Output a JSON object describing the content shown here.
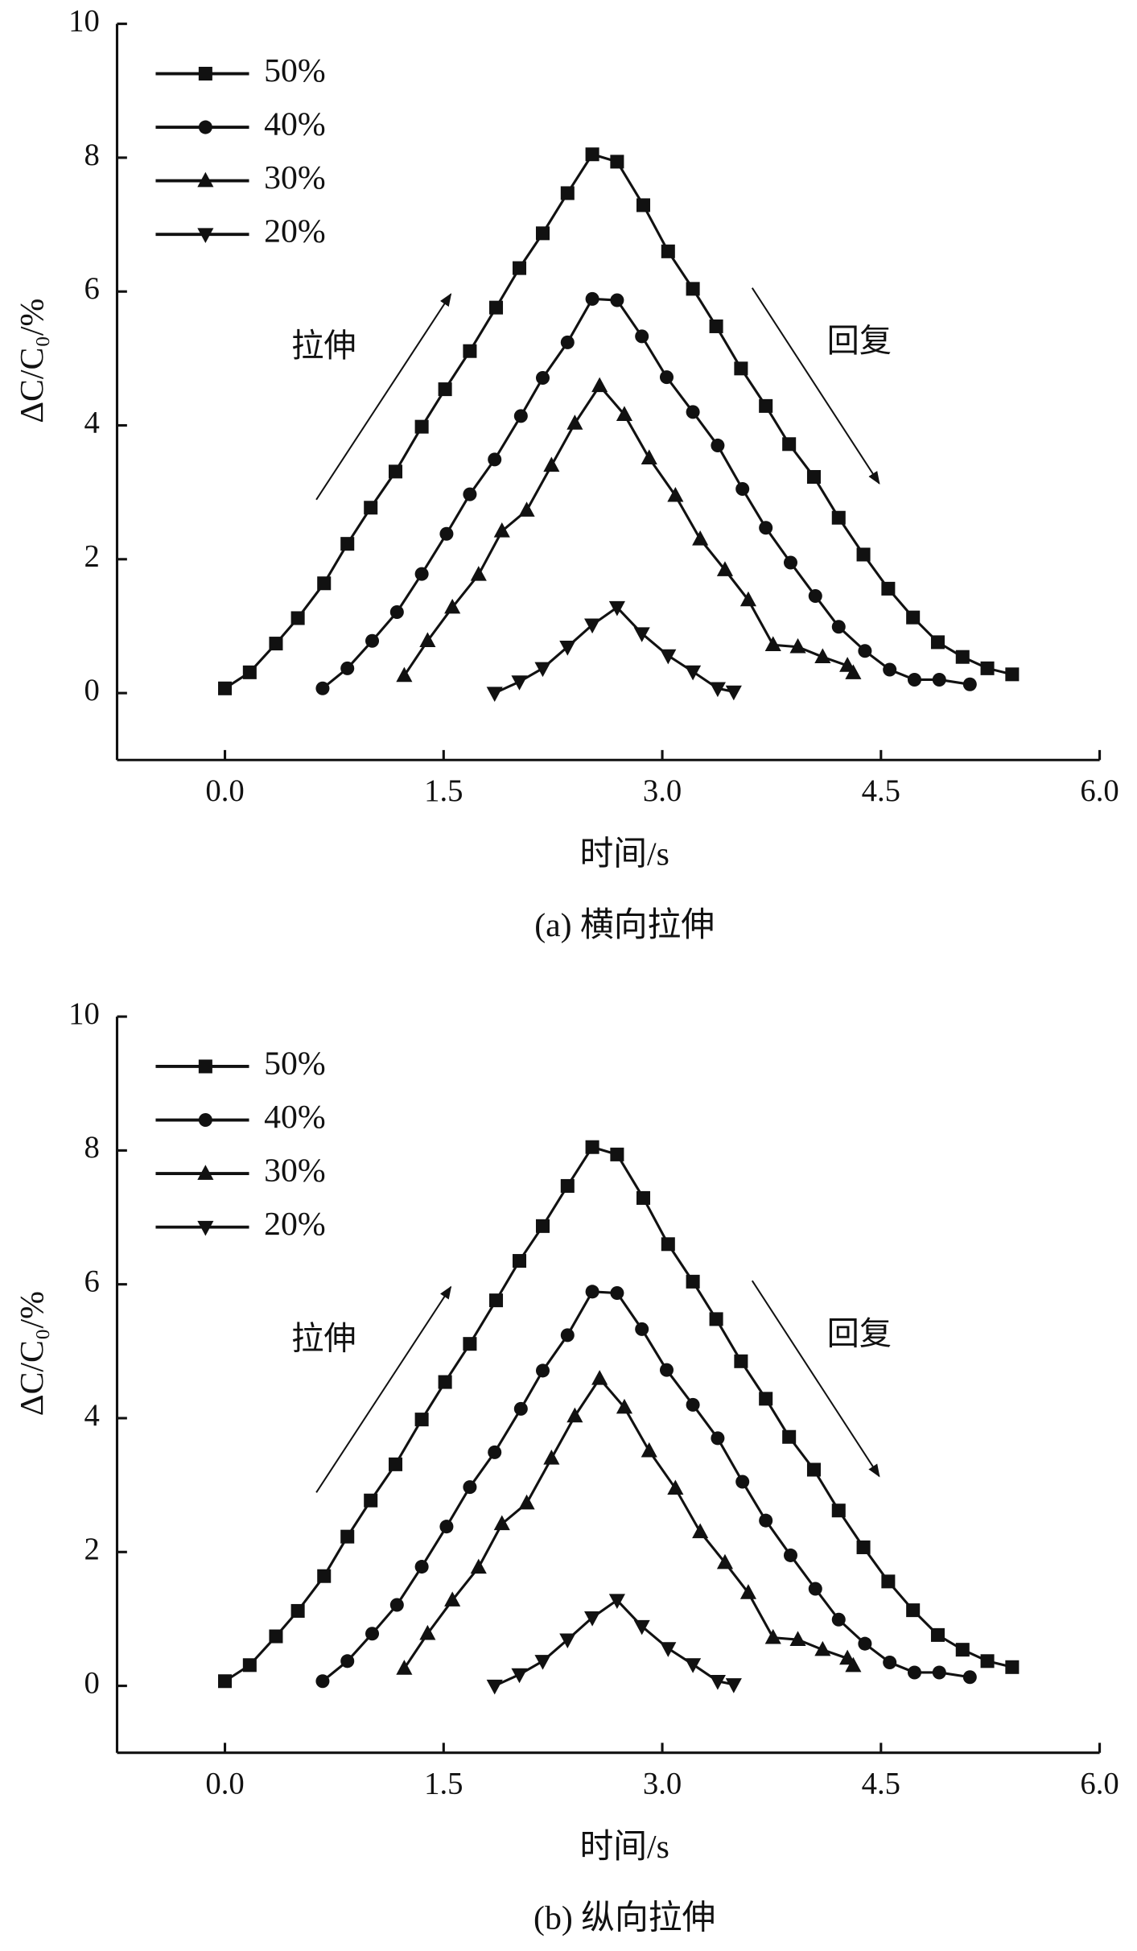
{
  "chart_data": [
    {
      "type": "line",
      "caption": "(a) 横向拉伸",
      "x_label": "时间/s",
      "y_label": "ΔC/C₀/%",
      "annotations": [
        "拉伸",
        "回复"
      ],
      "xlim": [
        -0.74,
        6
      ],
      "ylim": [
        -1,
        10
      ],
      "xticks": [
        {
          "value": 0,
          "label": "0.0"
        },
        {
          "value": 1.5,
          "label": "1.5"
        },
        {
          "value": 3,
          "label": "3.0"
        },
        {
          "value": 4.5,
          "label": "4.5"
        },
        {
          "value": 6,
          "label": "6.0"
        }
      ],
      "yticks": [
        0,
        2,
        4,
        6,
        8,
        10
      ],
      "legend": "upper-left",
      "series": [
        {
          "name": "50%",
          "color": "#111111",
          "marker": "square",
          "x": [
            0,
            0.17,
            0.35,
            0.5,
            0.68,
            0.84,
            1.0,
            1.17,
            1.35,
            1.51,
            1.68,
            1.86,
            2.02,
            2.18,
            2.35,
            2.52,
            2.69,
            2.87,
            3.04,
            3.21,
            3.37,
            3.54,
            3.71,
            3.87,
            4.04,
            4.21,
            4.38,
            4.55,
            4.72,
            4.89,
            5.06,
            5.23,
            5.4
          ],
          "values": [
            0.07,
            0.31,
            0.74,
            1.12,
            1.64,
            2.23,
            2.77,
            3.31,
            3.98,
            4.54,
            5.11,
            5.76,
            6.35,
            6.87,
            7.47,
            8.05,
            7.94,
            7.29,
            6.6,
            6.04,
            5.48,
            4.85,
            4.29,
            3.72,
            3.23,
            2.62,
            2.07,
            1.56,
            1.13,
            0.76,
            0.54,
            0.37,
            0.28
          ]
        },
        {
          "name": "40%",
          "color": "#111111",
          "marker": "circle",
          "x": [
            0.67,
            0.84,
            1.01,
            1.18,
            1.35,
            1.52,
            1.68,
            1.85,
            2.03,
            2.18,
            2.35,
            2.52,
            2.69,
            2.86,
            3.03,
            3.21,
            3.38,
            3.55,
            3.71,
            3.88,
            4.05,
            4.21,
            4.39,
            4.56,
            4.73,
            4.9,
            5.11
          ],
          "values": [
            0.07,
            0.37,
            0.78,
            1.21,
            1.78,
            2.38,
            2.97,
            3.49,
            4.14,
            4.71,
            5.24,
            5.89,
            5.87,
            5.33,
            4.72,
            4.2,
            3.7,
            3.05,
            2.47,
            1.95,
            1.45,
            0.99,
            0.63,
            0.35,
            0.2,
            0.2,
            0.13
          ]
        },
        {
          "name": "30%",
          "color": "#111111",
          "marker": "triangle-up",
          "x": [
            1.23,
            1.39,
            1.56,
            1.74,
            1.9,
            2.07,
            2.24,
            2.4,
            2.57,
            2.74,
            2.91,
            3.09,
            3.26,
            3.43,
            3.59,
            3.76,
            3.93,
            4.1,
            4.27,
            4.31
          ],
          "values": [
            0.26,
            0.78,
            1.28,
            1.77,
            2.42,
            2.73,
            3.4,
            4.03,
            4.59,
            4.16,
            3.51,
            2.95,
            2.3,
            1.84,
            1.39,
            0.72,
            0.69,
            0.54,
            0.41,
            0.3
          ]
        },
        {
          "name": "20%",
          "color": "#111111",
          "marker": "triangle-down",
          "x": [
            1.85,
            2.02,
            2.18,
            2.35,
            2.52,
            2.69,
            2.86,
            3.04,
            3.21,
            3.38,
            3.49
          ],
          "values": [
            0,
            0.17,
            0.37,
            0.69,
            1.02,
            1.28,
            0.89,
            0.56,
            0.32,
            0.07,
            0.02
          ]
        }
      ]
    },
    {
      "type": "line",
      "caption": "(b) 纵向拉伸",
      "x_label": "时间/s",
      "y_label": "ΔC/C₀/%",
      "annotations": [
        "拉伸",
        "回复"
      ],
      "xlim": [
        -0.74,
        6
      ],
      "ylim": [
        -1,
        10
      ],
      "xticks": [
        {
          "value": 0,
          "label": "0.0"
        },
        {
          "value": 1.5,
          "label": "1.5"
        },
        {
          "value": 3,
          "label": "3.0"
        },
        {
          "value": 4.5,
          "label": "4.5"
        },
        {
          "value": 6,
          "label": "6.0"
        }
      ],
      "yticks": [
        0,
        2,
        4,
        6,
        8,
        10
      ],
      "legend": "upper-left",
      "series": [
        {
          "name": "50%",
          "color": "#111111",
          "marker": "square",
          "x": [
            0,
            0.17,
            0.35,
            0.5,
            0.68,
            0.84,
            1.0,
            1.17,
            1.35,
            1.51,
            1.68,
            1.86,
            2.02,
            2.18,
            2.35,
            2.52,
            2.69,
            2.87,
            3.04,
            3.21,
            3.37,
            3.54,
            3.71,
            3.87,
            4.04,
            4.21,
            4.38,
            4.55,
            4.72,
            4.89,
            5.06,
            5.23,
            5.4
          ],
          "values": [
            0.07,
            0.31,
            0.74,
            1.12,
            1.64,
            2.23,
            2.77,
            3.31,
            3.98,
            4.54,
            5.11,
            5.76,
            6.35,
            6.87,
            7.47,
            8.05,
            7.94,
            7.29,
            6.6,
            6.04,
            5.48,
            4.85,
            4.29,
            3.72,
            3.23,
            2.62,
            2.07,
            1.56,
            1.13,
            0.76,
            0.54,
            0.37,
            0.28
          ]
        },
        {
          "name": "40%",
          "color": "#111111",
          "marker": "circle",
          "x": [
            0.67,
            0.84,
            1.01,
            1.18,
            1.35,
            1.52,
            1.68,
            1.85,
            2.03,
            2.18,
            2.35,
            2.52,
            2.69,
            2.86,
            3.03,
            3.21,
            3.38,
            3.55,
            3.71,
            3.88,
            4.05,
            4.21,
            4.39,
            4.56,
            4.73,
            4.9,
            5.11
          ],
          "values": [
            0.07,
            0.37,
            0.78,
            1.21,
            1.78,
            2.38,
            2.97,
            3.49,
            4.14,
            4.71,
            5.24,
            5.89,
            5.87,
            5.33,
            4.72,
            4.2,
            3.7,
            3.05,
            2.47,
            1.95,
            1.45,
            0.99,
            0.63,
            0.35,
            0.2,
            0.2,
            0.13
          ]
        },
        {
          "name": "30%",
          "color": "#111111",
          "marker": "triangle-up",
          "x": [
            1.23,
            1.39,
            1.56,
            1.74,
            1.9,
            2.07,
            2.24,
            2.4,
            2.57,
            2.74,
            2.91,
            3.09,
            3.26,
            3.43,
            3.59,
            3.76,
            3.93,
            4.1,
            4.27,
            4.31
          ],
          "values": [
            0.26,
            0.78,
            1.28,
            1.77,
            2.42,
            2.73,
            3.4,
            4.03,
            4.59,
            4.16,
            3.51,
            2.95,
            2.3,
            1.84,
            1.39,
            0.72,
            0.69,
            0.54,
            0.41,
            0.3
          ]
        },
        {
          "name": "20%",
          "color": "#111111",
          "marker": "triangle-down",
          "x": [
            1.85,
            2.02,
            2.18,
            2.35,
            2.52,
            2.69,
            2.86,
            3.04,
            3.21,
            3.38,
            3.49
          ],
          "values": [
            0,
            0.17,
            0.37,
            0.69,
            1.02,
            1.28,
            0.89,
            0.56,
            0.32,
            0.07,
            0.02
          ]
        }
      ]
    }
  ]
}
